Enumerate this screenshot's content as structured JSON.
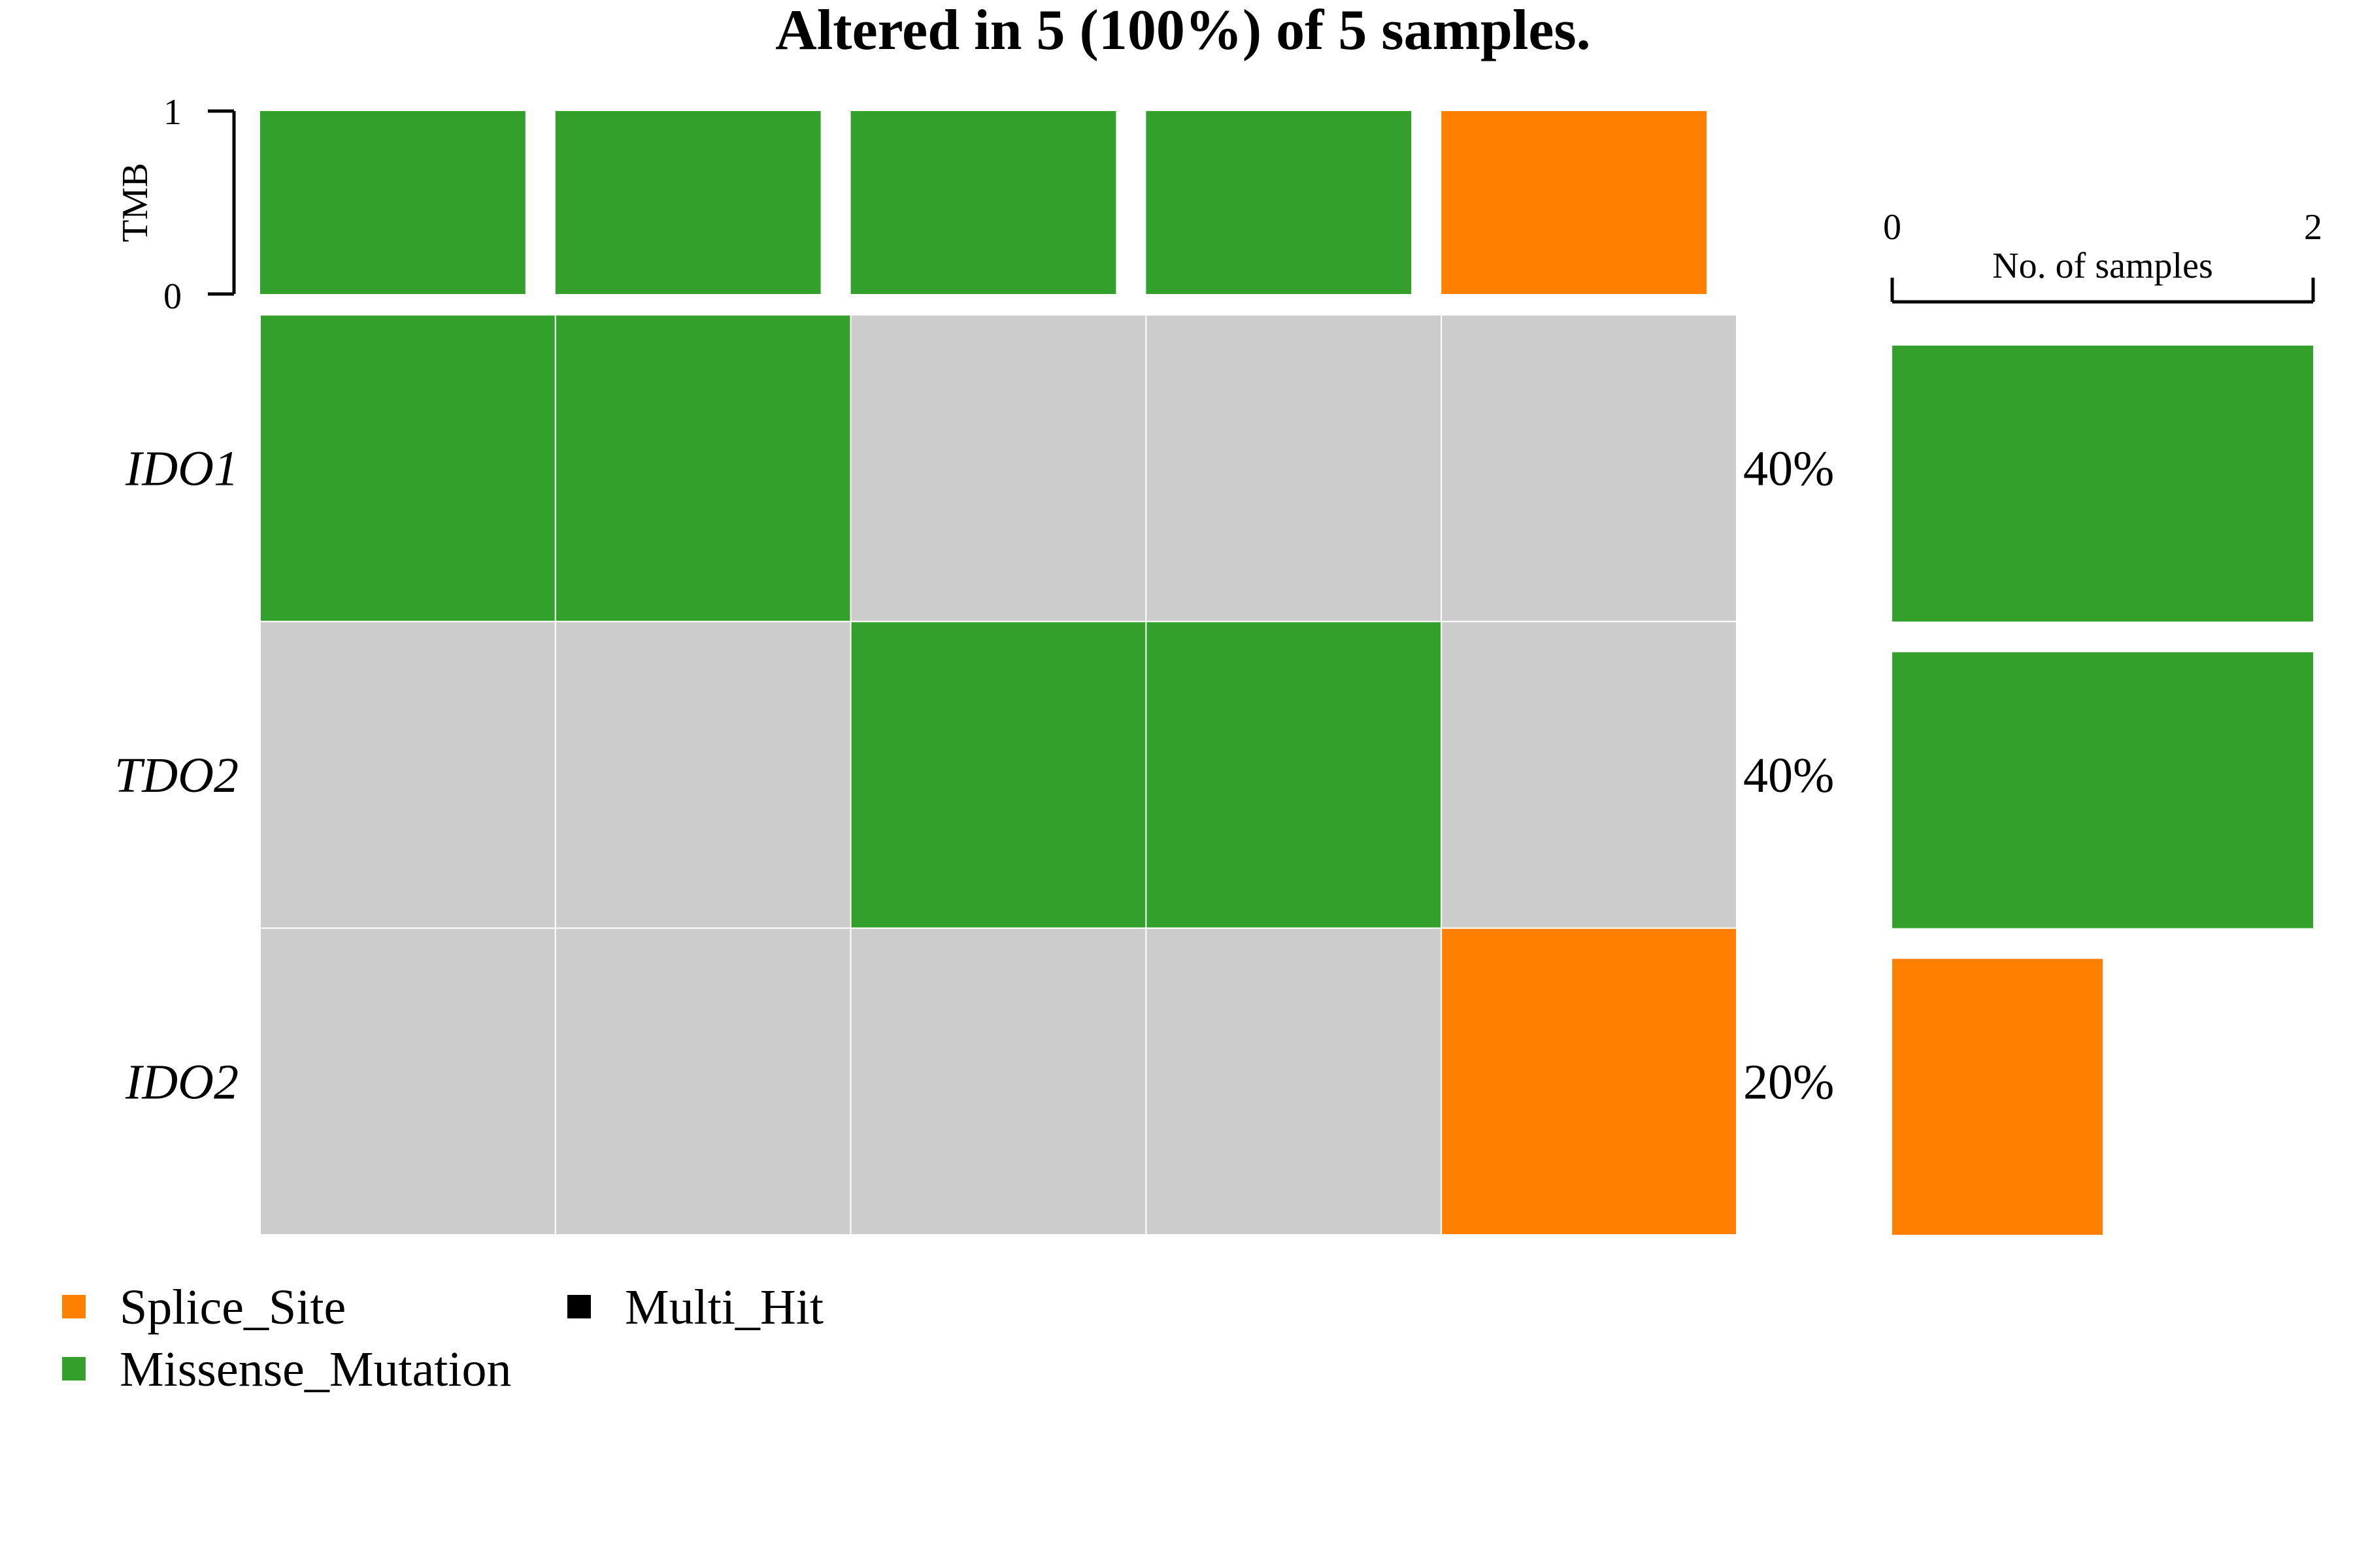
{
  "chart_data": {
    "type": "heatmap",
    "title": "Altered in 5 (100%) of 5 samples.",
    "genes": [
      "IDO1",
      "TDO2",
      "IDO2"
    ],
    "samples": 5,
    "matrix": [
      [
        "Missense_Mutation",
        "Missense_Mutation",
        "",
        "",
        ""
      ],
      [
        "",
        "",
        "Missense_Mutation",
        "Missense_Mutation",
        ""
      ],
      [
        "",
        "",
        "",
        "",
        "Splice_Site"
      ]
    ],
    "percent_labels": [
      "40%",
      "40%",
      "20%"
    ],
    "tmb": {
      "ylabel": "TMB",
      "ylim": [
        0,
        1
      ],
      "ticks": [
        "0",
        "1"
      ],
      "values": [
        1,
        1,
        1,
        1,
        1
      ],
      "classes": [
        "Missense_Mutation",
        "Missense_Mutation",
        "Missense_Mutation",
        "Missense_Mutation",
        "Splice_Site"
      ]
    },
    "side_bar": {
      "xlabel": "No. of samples",
      "xlim": [
        0,
        2
      ],
      "ticks": [
        "0",
        "2"
      ],
      "values": [
        2,
        2,
        1
      ],
      "classes": [
        "Missense_Mutation",
        "Missense_Mutation",
        "Splice_Site"
      ]
    },
    "legend": [
      {
        "label": "Splice_Site",
        "color": "#FF7F00"
      },
      {
        "label": "Missense_Mutation",
        "color": "#33A02C"
      },
      {
        "label": "Multi_Hit",
        "color": "#000000"
      }
    ],
    "colors": {
      "Missense_Mutation": "#33A02C",
      "Splice_Site": "#FF7F00",
      "Multi_Hit": "#000000",
      "background": "#CCCCCC"
    }
  }
}
